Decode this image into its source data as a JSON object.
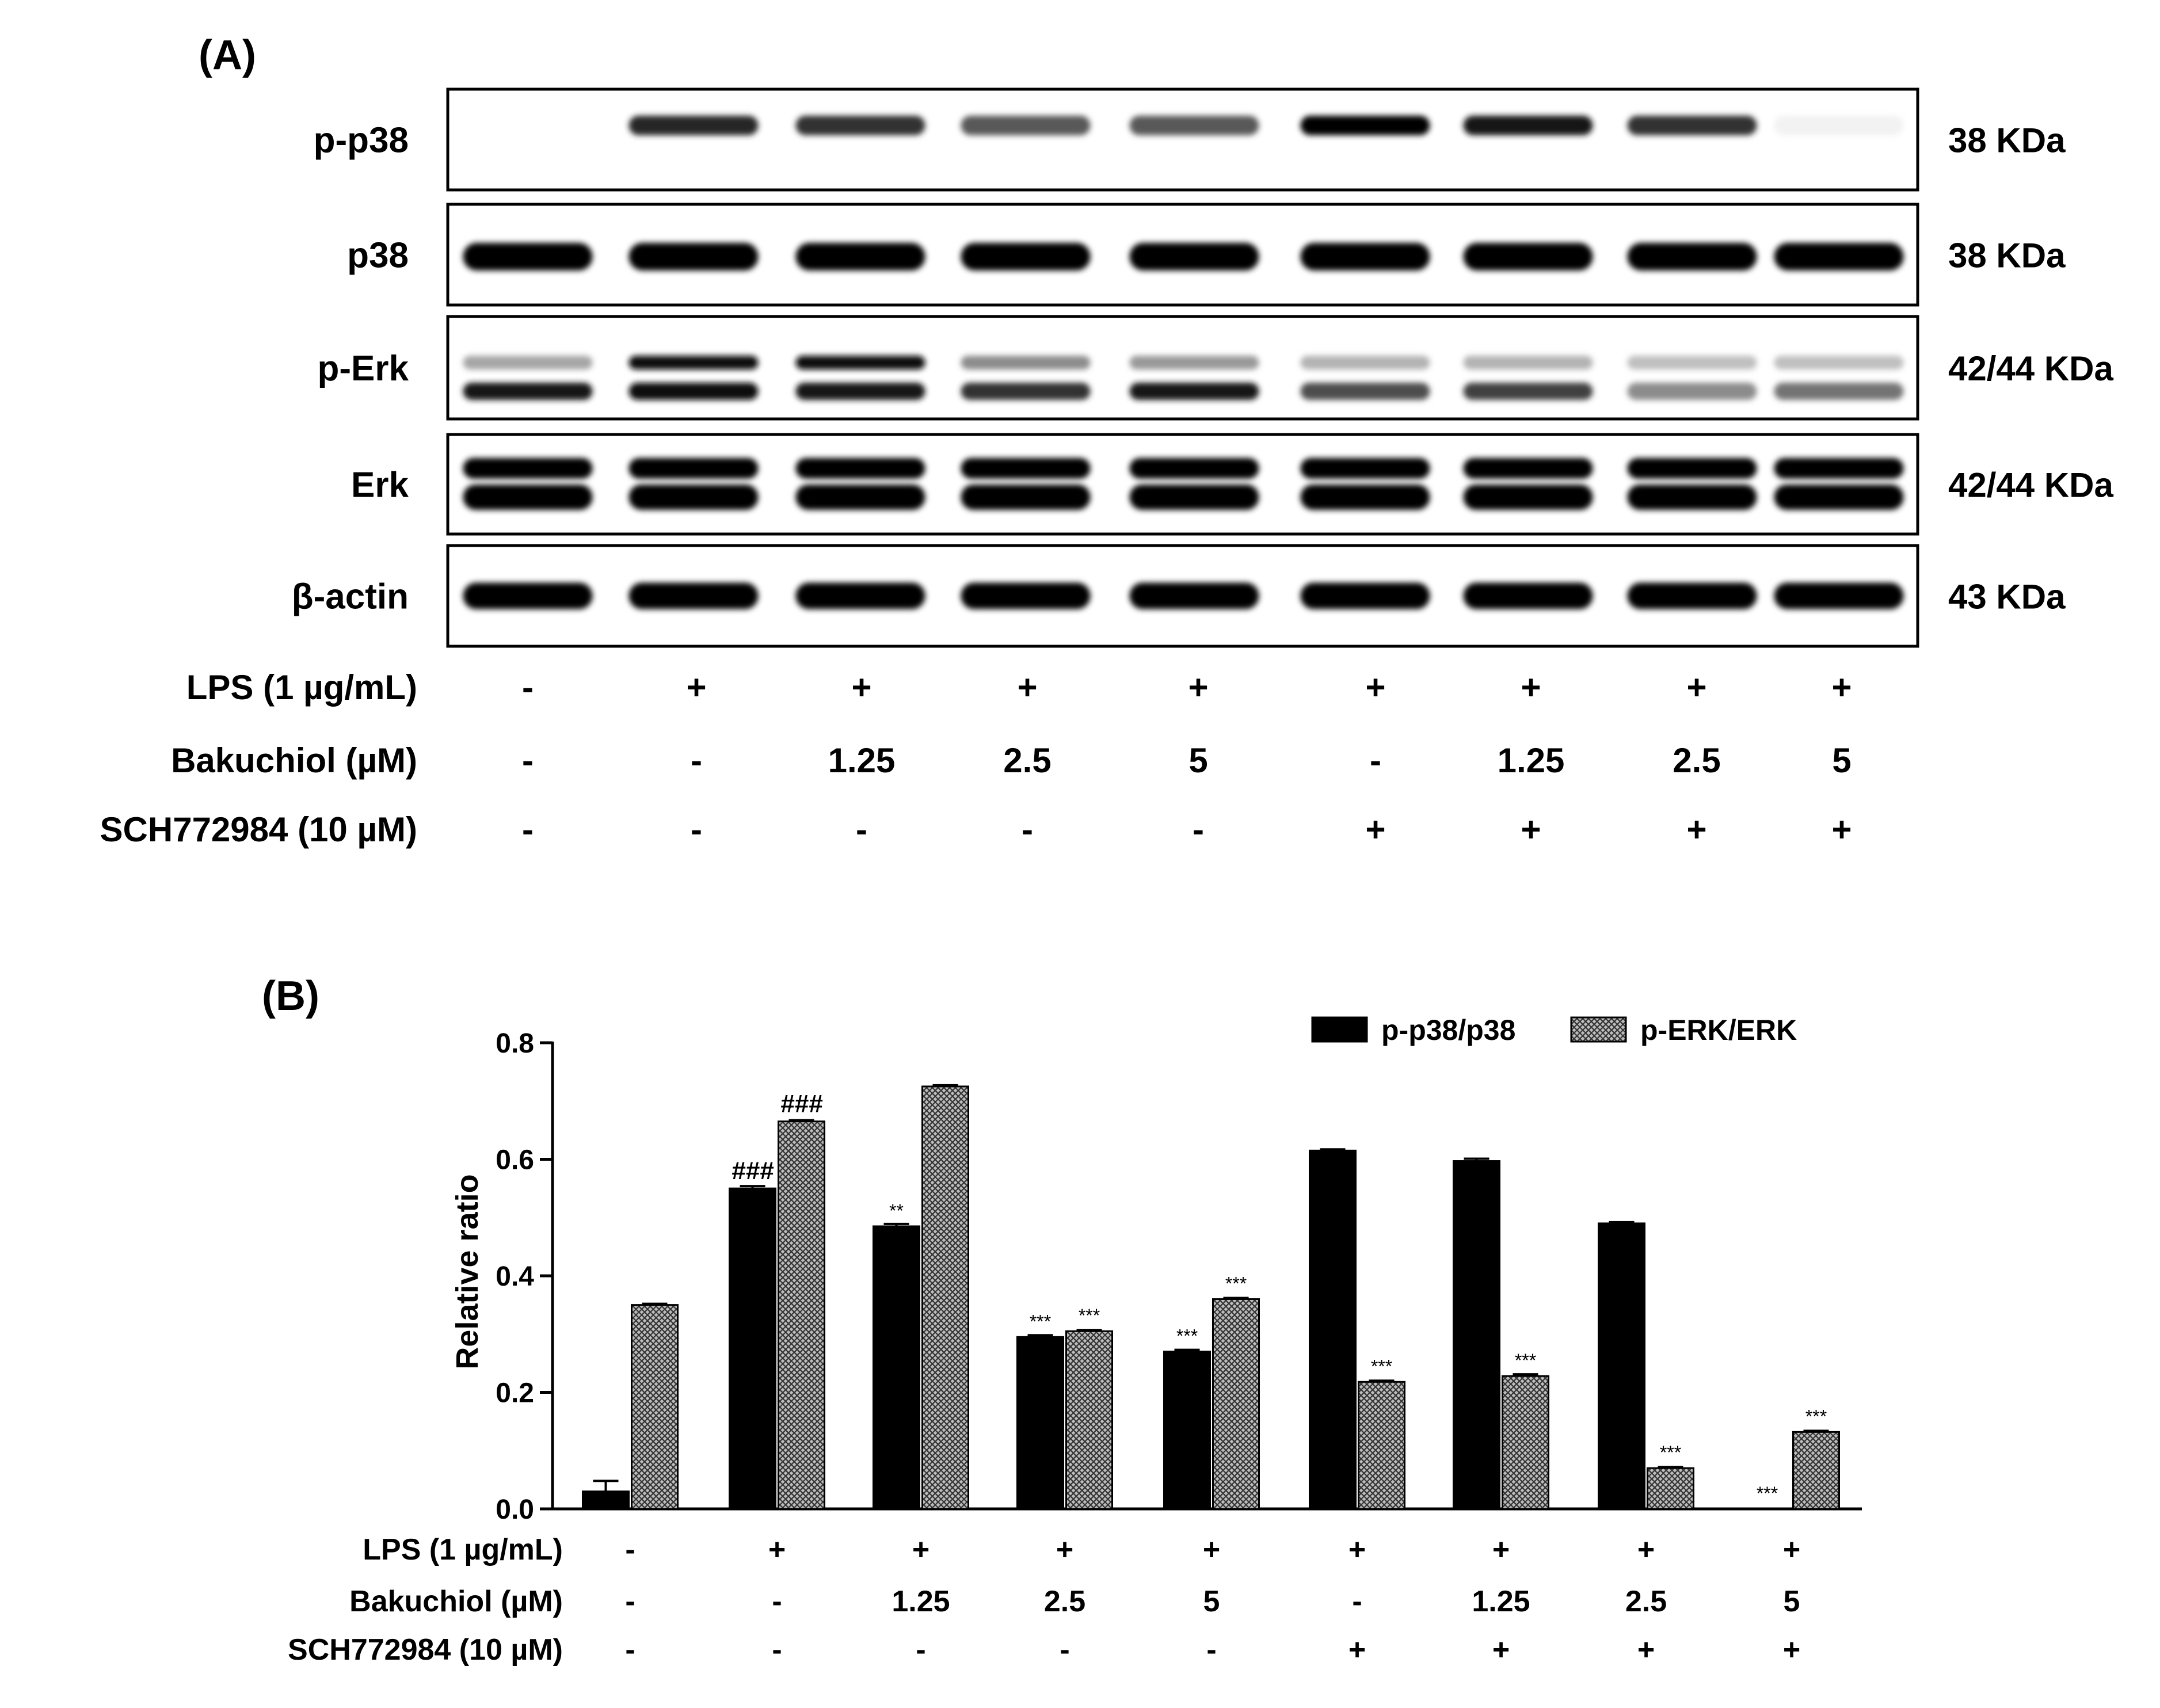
{
  "panel_a": {
    "label": "(A)",
    "blots": [
      {
        "name": "p-p38",
        "size": "38 KDa"
      },
      {
        "name": "p38",
        "size": "38 KDa"
      },
      {
        "name": "p-Erk",
        "size": "42/44 KDa"
      },
      {
        "name": "Erk",
        "size": "42/44 KDa"
      },
      {
        "name": "β-actin",
        "size": "43 KDa"
      }
    ],
    "conditions": [
      {
        "label": "LPS (1 µg/mL)",
        "values": [
          "-",
          "+",
          "+",
          "+",
          "+",
          "+",
          "+",
          "+",
          "+"
        ]
      },
      {
        "label": "Bakuchiol (µM)",
        "values": [
          "-",
          "-",
          "1.25",
          "2.5",
          "5",
          "-",
          "1.25",
          "2.5",
          "5"
        ]
      },
      {
        "label": "SCH772984 (10 µM)",
        "values": [
          "-",
          "-",
          "-",
          "-",
          "-",
          "+",
          "+",
          "+",
          "+"
        ]
      }
    ],
    "band_intensity": {
      "p-p38": [
        0.02,
        0.85,
        0.8,
        0.65,
        0.65,
        1.0,
        0.9,
        0.8,
        0.05
      ],
      "p38": [
        1,
        1,
        1,
        1,
        1,
        1,
        1,
        1,
        1
      ],
      "p-Erk-upper": [
        0.35,
        0.95,
        0.95,
        0.45,
        0.4,
        0.3,
        0.3,
        0.25,
        0.25
      ],
      "p-Erk-lower": [
        0.9,
        0.95,
        0.9,
        0.8,
        0.9,
        0.7,
        0.75,
        0.45,
        0.55
      ],
      "Erk": [
        1,
        1,
        1,
        1,
        1,
        1,
        1,
        1,
        1
      ],
      "β-actin": [
        1,
        1,
        1,
        1,
        1,
        1,
        1,
        1,
        1
      ]
    }
  },
  "panel_b": {
    "label": "(B)",
    "conditions": [
      {
        "label": "LPS  (1 µg/mL)",
        "values": [
          "-",
          "+",
          "+",
          "+",
          "+",
          "+",
          "+",
          "+",
          "+"
        ]
      },
      {
        "label": "Bakuchiol (µM)",
        "values": [
          "-",
          "-",
          "1.25",
          "2.5",
          "5",
          "-",
          "1.25",
          "2.5",
          "5"
        ]
      },
      {
        "label": "SCH772984 (10 µM)",
        "values": [
          "-",
          "-",
          "-",
          "-",
          "-",
          "+",
          "+",
          "+",
          "+"
        ]
      }
    ]
  },
  "chart_data": {
    "type": "bar",
    "title": "",
    "xlabel": "",
    "ylabel": "Relative ratio",
    "ylim": [
      0,
      0.8
    ],
    "yticks": [
      "0.0",
      "0.2",
      "0.4",
      "0.6",
      "0.8"
    ],
    "grid": false,
    "legend_position": "top-right",
    "categories": [
      "1",
      "2",
      "3",
      "4",
      "5",
      "6",
      "7",
      "8",
      "9"
    ],
    "series": [
      {
        "name": "p-p38/p38",
        "color": "#000000",
        "values": [
          0.03,
          0.55,
          0.485,
          0.295,
          0.27,
          0.615,
          0.597,
          0.49,
          0.0
        ],
        "errors": [
          0.018,
          0.004,
          0.004,
          0.003,
          0.003,
          0.002,
          0.004,
          0.002,
          0.0
        ],
        "annotations": [
          "",
          "###",
          "**",
          "***",
          "***",
          "",
          "",
          "",
          "***"
        ]
      },
      {
        "name": "p-ERK/ERK",
        "color": "#8a8a8a",
        "values": [
          0.35,
          0.665,
          0.725,
          0.305,
          0.36,
          0.218,
          0.228,
          0.07,
          0.132
        ],
        "errors": [
          0.002,
          0.002,
          0.002,
          0.002,
          0.002,
          0.002,
          0.003,
          0.002,
          0.002
        ],
        "annotations": [
          "",
          "###",
          "",
          "***",
          "***",
          "***",
          "***",
          "***",
          "***"
        ]
      }
    ]
  }
}
